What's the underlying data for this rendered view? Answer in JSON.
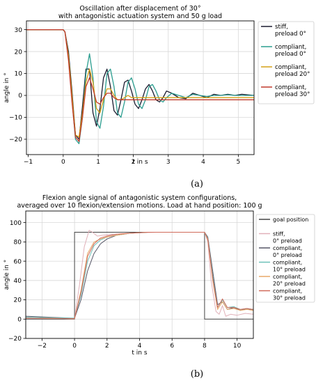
{
  "chart_data": [
    {
      "type": "line",
      "title": "Oscillation after displacement of 30°",
      "subtitle": "with antagonistic actuation system and 50 g load",
      "xlabel": "t in s",
      "ylabel": "angle in °",
      "xlim": [
        -1.05,
        5.45
      ],
      "ylim": [
        -27,
        34
      ],
      "xticks": [
        -1,
        0,
        1,
        2,
        3,
        4,
        5
      ],
      "yticks": [
        -20,
        -10,
        0,
        10,
        20,
        30
      ],
      "grid": true,
      "legend_position": "outside-right",
      "caption": "(a)",
      "series": [
        {
          "name": "stiff, preload 0°",
          "legend_lines": [
            "stiff,",
            "preload 0°"
          ],
          "color": "#1b1b2f",
          "x": [
            -1.05,
            0,
            0.05,
            0.15,
            0.25,
            0.35,
            0.45,
            0.55,
            0.65,
            0.75,
            0.85,
            0.95,
            1.05,
            1.15,
            1.25,
            1.35,
            1.45,
            1.55,
            1.65,
            1.75,
            1.85,
            1.95,
            2.05,
            2.15,
            2.25,
            2.35,
            2.45,
            2.55,
            2.65,
            2.75,
            2.85,
            2.95,
            3.1,
            3.3,
            3.5,
            3.7,
            3.9,
            4.1,
            4.3,
            4.5,
            4.7,
            4.9,
            5.1,
            5.45
          ],
          "y": [
            30,
            30,
            29,
            20,
            2,
            -18,
            -20,
            -5,
            12,
            12,
            -8,
            -14,
            -6,
            8,
            12,
            4,
            -7,
            -9,
            -2,
            6,
            7,
            2,
            -4,
            -6,
            -2,
            3,
            5,
            2,
            -2,
            -3,
            -1,
            2,
            1,
            -1,
            -1.5,
            1,
            0,
            -1,
            0.5,
            0,
            0.5,
            0,
            0.5,
            0
          ]
        },
        {
          "name": "compliant, preload 0°",
          "legend_lines": [
            "compliant,",
            "preload 0°"
          ],
          "color": "#2a9d8f",
          "x": [
            -1.05,
            0,
            0.05,
            0.15,
            0.25,
            0.35,
            0.45,
            0.55,
            0.65,
            0.75,
            0.85,
            0.95,
            1.05,
            1.15,
            1.25,
            1.35,
            1.45,
            1.55,
            1.65,
            1.75,
            1.85,
            1.95,
            2.05,
            2.15,
            2.25,
            2.35,
            2.45,
            2.55,
            2.65,
            2.75,
            2.85,
            2.95,
            3.1,
            3.3,
            3.5,
            3.7,
            3.9,
            4.1,
            4.3,
            4.5,
            4.7,
            4.9,
            5.1,
            5.45
          ],
          "y": [
            30,
            30,
            29,
            18,
            -2,
            -20,
            -22,
            -10,
            10,
            19,
            8,
            -12,
            -15,
            -5,
            10,
            12,
            4,
            -8,
            -10,
            -3,
            6,
            8,
            3,
            -4,
            -6,
            -2,
            4,
            5,
            2,
            -2,
            -3,
            -1,
            1,
            0,
            -1,
            0.5,
            0,
            -0.5,
            0,
            0,
            0.3,
            0,
            0,
            0
          ]
        },
        {
          "name": "compliant, preload 20°",
          "legend_lines": [
            "compliant,",
            "preload 20°"
          ],
          "color": "#d4a017",
          "x": [
            -1.05,
            0,
            0.05,
            0.15,
            0.25,
            0.35,
            0.45,
            0.55,
            0.65,
            0.75,
            0.85,
            0.95,
            1.05,
            1.15,
            1.25,
            1.35,
            1.45,
            1.55,
            1.65,
            1.75,
            1.85,
            1.95,
            2.05,
            2.15,
            2.25,
            2.35,
            2.45,
            2.55,
            2.65,
            2.75,
            2.85,
            2.95,
            3.1,
            3.3,
            3.5,
            3.7,
            3.9,
            4.1,
            4.3,
            4.5,
            4.7,
            4.9,
            5.1,
            5.45
          ],
          "y": [
            30,
            30,
            29,
            18,
            0,
            -18,
            -19,
            -8,
            6,
            12,
            6,
            -6,
            -8,
            -2,
            3,
            3,
            0,
            -2,
            -2,
            -1,
            0,
            -1,
            -1,
            -1,
            -1,
            -1,
            -1,
            -1,
            -1,
            -1,
            -1,
            -1,
            -1,
            -1,
            -1,
            -1,
            -1,
            -1,
            -1,
            -1,
            -1,
            -1,
            -1,
            -1
          ]
        },
        {
          "name": "compliant, preload 30°",
          "legend_lines": [
            "compliant,",
            "preload 30°"
          ],
          "color": "#c0392b",
          "x": [
            -1.05,
            0,
            0.05,
            0.15,
            0.25,
            0.35,
            0.45,
            0.55,
            0.65,
            0.75,
            0.85,
            0.95,
            1.05,
            1.15,
            1.25,
            1.35,
            1.45,
            1.55,
            1.65,
            1.75,
            1.85,
            1.95,
            2.05,
            2.15,
            2.25,
            2.35,
            2.45,
            2.55,
            2.65,
            2.75,
            2.85,
            2.95,
            3.1,
            3.3,
            3.5,
            3.7,
            3.9,
            4.1,
            4.3,
            4.5,
            4.7,
            4.9,
            5.1,
            5.45
          ],
          "y": [
            30,
            30,
            29,
            16,
            -3,
            -19,
            -21,
            -10,
            4,
            8,
            3,
            -3,
            -4,
            -1,
            1,
            1,
            -1,
            -2,
            -2,
            -2,
            -2,
            -2,
            -2,
            -2,
            -2,
            -2,
            -2,
            -2,
            -2,
            -2,
            -2,
            -2,
            -2,
            -2,
            -2,
            -2,
            -2,
            -2,
            -2,
            -2,
            -2,
            -2,
            -2,
            -2
          ]
        }
      ]
    },
    {
      "type": "line",
      "title": "Flexion angle signal of antagonistic system configurations,",
      "subtitle": "averaged over 10 flexion/extension motions. Load at hand position: 100 g",
      "xlabel": "t in s",
      "ylabel": "angle in °",
      "xlim": [
        -3,
        11
      ],
      "ylim": [
        -20,
        112
      ],
      "xticks": [
        -2,
        0,
        2,
        4,
        6,
        8,
        10
      ],
      "yticks": [
        -20,
        0,
        20,
        40,
        60,
        80,
        100
      ],
      "grid": true,
      "legend_position": "outside-right",
      "caption": "(b)",
      "series": [
        {
          "name": "goal position",
          "legend_lines": [
            "goal position"
          ],
          "color": "#444444",
          "x": [
            -3,
            0,
            0,
            8,
            8,
            11
          ],
          "y": [
            0,
            0,
            90,
            90,
            0,
            0
          ]
        },
        {
          "name": "stiff, 0° preload",
          "legend_lines": [
            "stiff,",
            "0° preload"
          ],
          "color": "#e0b0b8",
          "x": [
            -3,
            -0.2,
            0,
            0.3,
            0.6,
            0.9,
            1.1,
            1.4,
            1.8,
            2.5,
            3.5,
            5,
            8,
            8.2,
            8.4,
            8.7,
            8.9,
            9.1,
            9.3,
            9.6,
            10,
            10.5,
            11
          ],
          "y": [
            1,
            0.5,
            0.5,
            35,
            75,
            92,
            90,
            86,
            87,
            88,
            89,
            90,
            90,
            80,
            40,
            8,
            5,
            14,
            3,
            5,
            4,
            6,
            5
          ]
        },
        {
          "name": "compliant, 0° preload",
          "legend_lines": [
            "compliant,",
            "0° preload"
          ],
          "color": "#555566",
          "x": [
            -3,
            -0.2,
            0,
            0.4,
            0.8,
            1.2,
            1.6,
            2,
            2.6,
            3.4,
            4.5,
            6,
            8,
            8.2,
            8.5,
            8.8,
            9.1,
            9.4,
            9.8,
            10.2,
            10.6,
            11
          ],
          "y": [
            3,
            1,
            1,
            20,
            50,
            68,
            78,
            83,
            87,
            89,
            90,
            90,
            90,
            85,
            50,
            15,
            18,
            10,
            12,
            9,
            11,
            9
          ]
        },
        {
          "name": "compliant, 10° preload",
          "legend_lines": [
            "compliant,",
            "10° preload"
          ],
          "color": "#6cc0b8",
          "x": [
            -3,
            -0.2,
            0,
            0.4,
            0.8,
            1.2,
            1.6,
            2,
            2.6,
            3.4,
            4.5,
            6,
            8,
            8.2,
            8.5,
            8.8,
            9.1,
            9.4,
            9.8,
            10.2,
            10.6,
            11
          ],
          "y": [
            2,
            1,
            1,
            25,
            60,
            76,
            82,
            85,
            87,
            89,
            90,
            90,
            90,
            84,
            45,
            12,
            20,
            12,
            13,
            10,
            11,
            10
          ]
        },
        {
          "name": "compliant, 20° preload",
          "legend_lines": [
            "compliant,",
            "20° preload"
          ],
          "color": "#e8a968",
          "x": [
            -3,
            -0.2,
            0,
            0.4,
            0.8,
            1.2,
            1.6,
            2,
            2.6,
            3.4,
            4.5,
            6,
            8,
            8.2,
            8.5,
            8.8,
            9.1,
            9.4,
            9.8,
            10.2,
            10.6,
            11
          ],
          "y": [
            1,
            0.5,
            0.5,
            30,
            68,
            80,
            83,
            85,
            87,
            89,
            90,
            90,
            90,
            82,
            40,
            10,
            18,
            10,
            11,
            9,
            10,
            9
          ]
        },
        {
          "name": "compliant, 30° preload",
          "legend_lines": [
            "compliant,",
            "30° preload"
          ],
          "color": "#d06a5a",
          "x": [
            -3,
            -0.2,
            0,
            0.4,
            0.8,
            1.2,
            1.6,
            2,
            2.6,
            3.4,
            4.5,
            6,
            8,
            8.2,
            8.5,
            8.8,
            9.1,
            9.4,
            9.8,
            10.2,
            10.6,
            11
          ],
          "y": [
            1,
            0.5,
            0.5,
            28,
            65,
            78,
            84,
            86,
            88,
            89,
            90,
            90,
            90,
            83,
            42,
            12,
            21,
            12,
            12,
            10,
            11,
            10
          ]
        }
      ]
    }
  ]
}
